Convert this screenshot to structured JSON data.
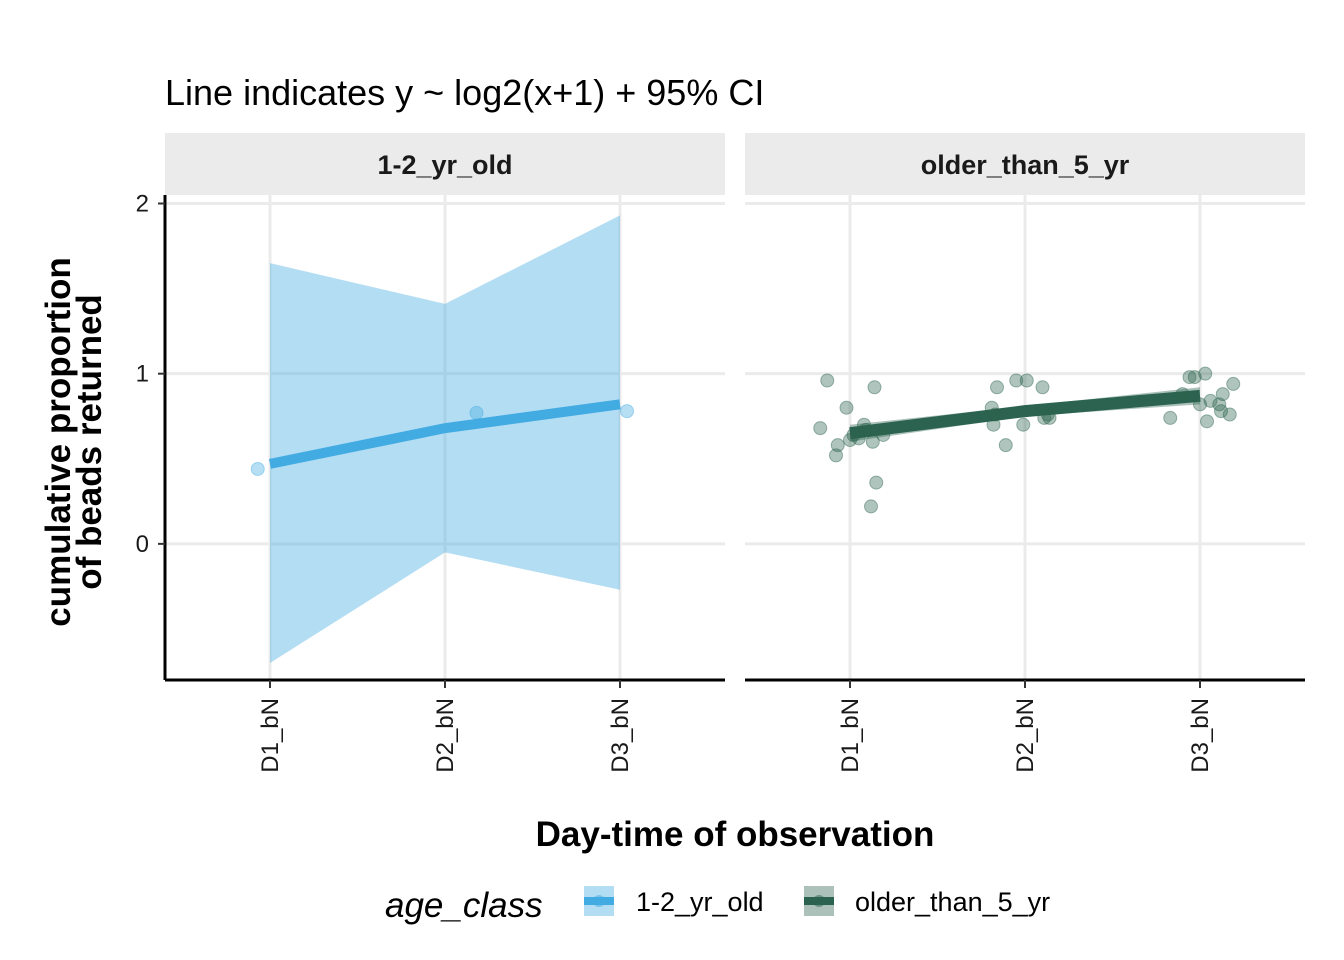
{
  "chart_data": {
    "type": "scatter",
    "subtitle": "Line indicates y ~ log2(x+1) + 95% CI",
    "xlabel": "Day-time of observation",
    "ylabel_lines": [
      "cumulative proportion",
      "of beads returned"
    ],
    "categories": [
      "D1_bN",
      "D2_bN",
      "D3_bN"
    ],
    "y_ticks": [
      0,
      1,
      2
    ],
    "ylim": [
      -0.8,
      2.05
    ],
    "grid": true,
    "legend": {
      "title": "age_class",
      "position": "bottom",
      "items": [
        {
          "label": "1-2_yr_old",
          "color": "#42ABE2"
        },
        {
          "label": "older_than_5_yr",
          "color": "#2C6350"
        }
      ]
    },
    "panels": [
      {
        "strip": "1-2_yr_old",
        "color": "#42ABE2",
        "points": [
          {
            "x": 0.93,
            "y": 0.44
          },
          {
            "x": 2.18,
            "y": 0.77
          },
          {
            "x": 3.04,
            "y": 0.78
          }
        ],
        "fit": [
          {
            "x": 1,
            "y": 0.47,
            "lo": -0.7,
            "hi": 1.65
          },
          {
            "x": 2,
            "y": 0.68,
            "lo": -0.05,
            "hi": 1.41
          },
          {
            "x": 3,
            "y": 0.82,
            "lo": -0.27,
            "hi": 1.93
          }
        ]
      },
      {
        "strip": "older_than_5_yr",
        "color": "#2C6350",
        "points": [
          {
            "x": 0.83,
            "y": 0.68
          },
          {
            "x": 0.87,
            "y": 0.96
          },
          {
            "x": 0.92,
            "y": 0.52
          },
          {
            "x": 0.93,
            "y": 0.58
          },
          {
            "x": 0.98,
            "y": 0.8
          },
          {
            "x": 1.0,
            "y": 0.61
          },
          {
            "x": 1.02,
            "y": 0.64
          },
          {
            "x": 1.05,
            "y": 0.62
          },
          {
            "x": 1.08,
            "y": 0.7
          },
          {
            "x": 1.09,
            "y": 0.67
          },
          {
            "x": 1.12,
            "y": 0.22
          },
          {
            "x": 1.13,
            "y": 0.6
          },
          {
            "x": 1.14,
            "y": 0.92
          },
          {
            "x": 1.15,
            "y": 0.36
          },
          {
            "x": 1.19,
            "y": 0.64
          },
          {
            "x": 1.81,
            "y": 0.8
          },
          {
            "x": 1.82,
            "y": 0.7
          },
          {
            "x": 1.83,
            "y": 0.76
          },
          {
            "x": 1.84,
            "y": 0.92
          },
          {
            "x": 1.89,
            "y": 0.58
          },
          {
            "x": 1.95,
            "y": 0.96
          },
          {
            "x": 1.99,
            "y": 0.7
          },
          {
            "x": 2.01,
            "y": 0.96
          },
          {
            "x": 2.1,
            "y": 0.92
          },
          {
            "x": 2.11,
            "y": 0.74
          },
          {
            "x": 2.13,
            "y": 0.76
          },
          {
            "x": 2.14,
            "y": 0.74
          },
          {
            "x": 2.83,
            "y": 0.74
          },
          {
            "x": 2.9,
            "y": 0.88
          },
          {
            "x": 2.94,
            "y": 0.98
          },
          {
            "x": 2.97,
            "y": 0.98
          },
          {
            "x": 3.0,
            "y": 0.82
          },
          {
            "x": 3.03,
            "y": 1.0
          },
          {
            "x": 3.04,
            "y": 0.72
          },
          {
            "x": 3.06,
            "y": 0.84
          },
          {
            "x": 3.11,
            "y": 0.82
          },
          {
            "x": 3.12,
            "y": 0.78
          },
          {
            "x": 3.13,
            "y": 0.88
          },
          {
            "x": 3.17,
            "y": 0.76
          },
          {
            "x": 3.19,
            "y": 0.94
          }
        ],
        "fit": [
          {
            "x": 1,
            "y": 0.65,
            "lo": 0.6,
            "hi": 0.7
          },
          {
            "x": 2,
            "y": 0.78,
            "lo": 0.75,
            "hi": 0.81
          },
          {
            "x": 3,
            "y": 0.87,
            "lo": 0.82,
            "hi": 0.92
          }
        ]
      }
    ]
  }
}
